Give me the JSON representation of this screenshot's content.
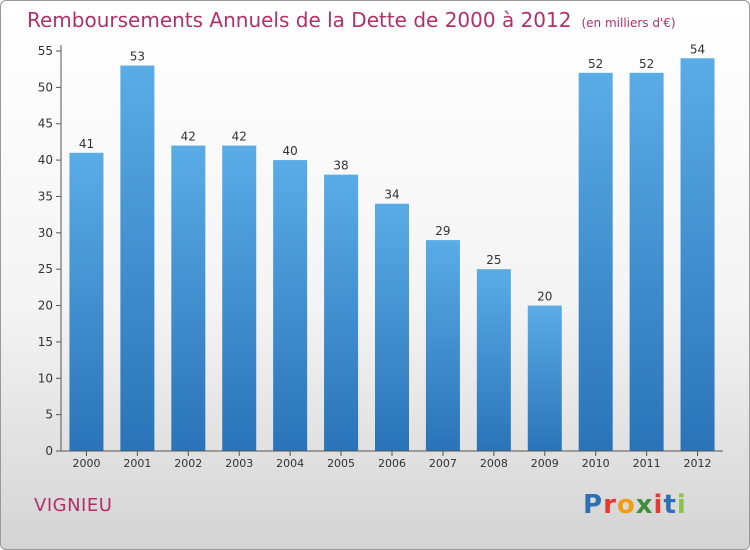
{
  "title": "Remboursements Annuels de la Dette de 2000 à 2012",
  "unit_note": "(en milliers d'€)",
  "commune": "VIGNIEU",
  "logo": {
    "letters": [
      "P",
      "r",
      "o",
      "x",
      "i",
      "t",
      "i"
    ],
    "colors": [
      "#2f6fb6",
      "#e53935",
      "#f39c12",
      "#3e8e3e",
      "#e53935",
      "#2f6fb6",
      "#8bc34a"
    ]
  },
  "colors": {
    "bar": "#5aace6",
    "bar_dark": "#2a73b8",
    "title": "#b0306a"
  },
  "chart_data": {
    "type": "bar",
    "title": "Remboursements Annuels de la Dette de 2000 à 2012",
    "categories": [
      "2000",
      "2001",
      "2002",
      "2003",
      "2004",
      "2005",
      "2006",
      "2007",
      "2008",
      "2009",
      "2010",
      "2011",
      "2012"
    ],
    "values": [
      41,
      53,
      42,
      42,
      40,
      38,
      34,
      29,
      25,
      20,
      52,
      52,
      54
    ],
    "ylim": [
      0,
      55
    ],
    "yticks": [
      0,
      5,
      10,
      15,
      20,
      25,
      30,
      35,
      40,
      45,
      50,
      55
    ],
    "grid": false,
    "xlabel": "",
    "ylabel": ""
  }
}
